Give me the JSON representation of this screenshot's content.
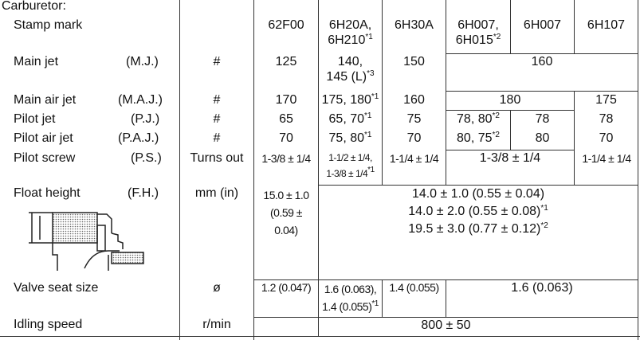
{
  "section": "Carburetor:",
  "rows": {
    "stamp": {
      "label": "Stamp mark",
      "v": [
        "62F00",
        "6H20A,",
        "6H210",
        "*1",
        "6H30A",
        "6H007,",
        "6H015",
        "*2",
        "6H007",
        "6H107"
      ]
    },
    "mj": {
      "label": "Main jet",
      "abbr": "(M.J.)",
      "unit": "#",
      "v": [
        "125",
        "140,",
        "145 (L)",
        "*3",
        "150",
        "160"
      ]
    },
    "maj": {
      "label": "Main air jet",
      "abbr": "(M.A.J.)",
      "unit": "#",
      "v": [
        "170",
        "175, 180",
        "*1",
        "160",
        "180",
        "175"
      ]
    },
    "pj": {
      "label": "Pilot jet",
      "abbr": "(P.J.)",
      "unit": "#",
      "v": [
        "65",
        "65, 70",
        "*1",
        "75",
        "78, 80",
        "*2",
        "78",
        "78"
      ]
    },
    "paj": {
      "label": "Pilot air jet",
      "abbr": "(P.A.J.)",
      "unit": "#",
      "v": [
        "70",
        "75, 80",
        "*1",
        "70",
        "80, 75",
        "*2",
        "80",
        "70"
      ]
    },
    "ps": {
      "label": "Pilot screw",
      "abbr": "(P.S.)",
      "unit": "Turns out",
      "v": [
        "1-3/8 ± 1/4",
        "1-1/2 ± 1/4,",
        "1-3/8 ± 1/4",
        "*1",
        "1-1/4 ± 1/4",
        "1-3/8 ± 1/4",
        "1-1/4 ± 1/4"
      ]
    },
    "fh": {
      "label": "Float height",
      "abbr": "(F.H.)",
      "unit": "mm (in)",
      "v": [
        "15.0 ± 1.0",
        "(0.59 ±",
        "0.04)",
        "14.0 ± 1.0 (0.55 ± 0.04)",
        "14.0 ± 2.0 (0.55 ± 0.08)",
        "*1",
        "19.5 ± 3.0 (0.77 ± 0.12)",
        "*2"
      ]
    },
    "vs": {
      "label": "Valve seat size",
      "unit": "ø",
      "v": [
        "1.2 (0.047)",
        "1.6 (0.063),",
        "1.4 (0.055)",
        "*1",
        "1.4 (0.055)",
        "1.6 (0.063)"
      ]
    },
    "idle": {
      "label": "Idling speed",
      "unit": "r/min",
      "v": [
        "800 ± 50"
      ]
    }
  }
}
